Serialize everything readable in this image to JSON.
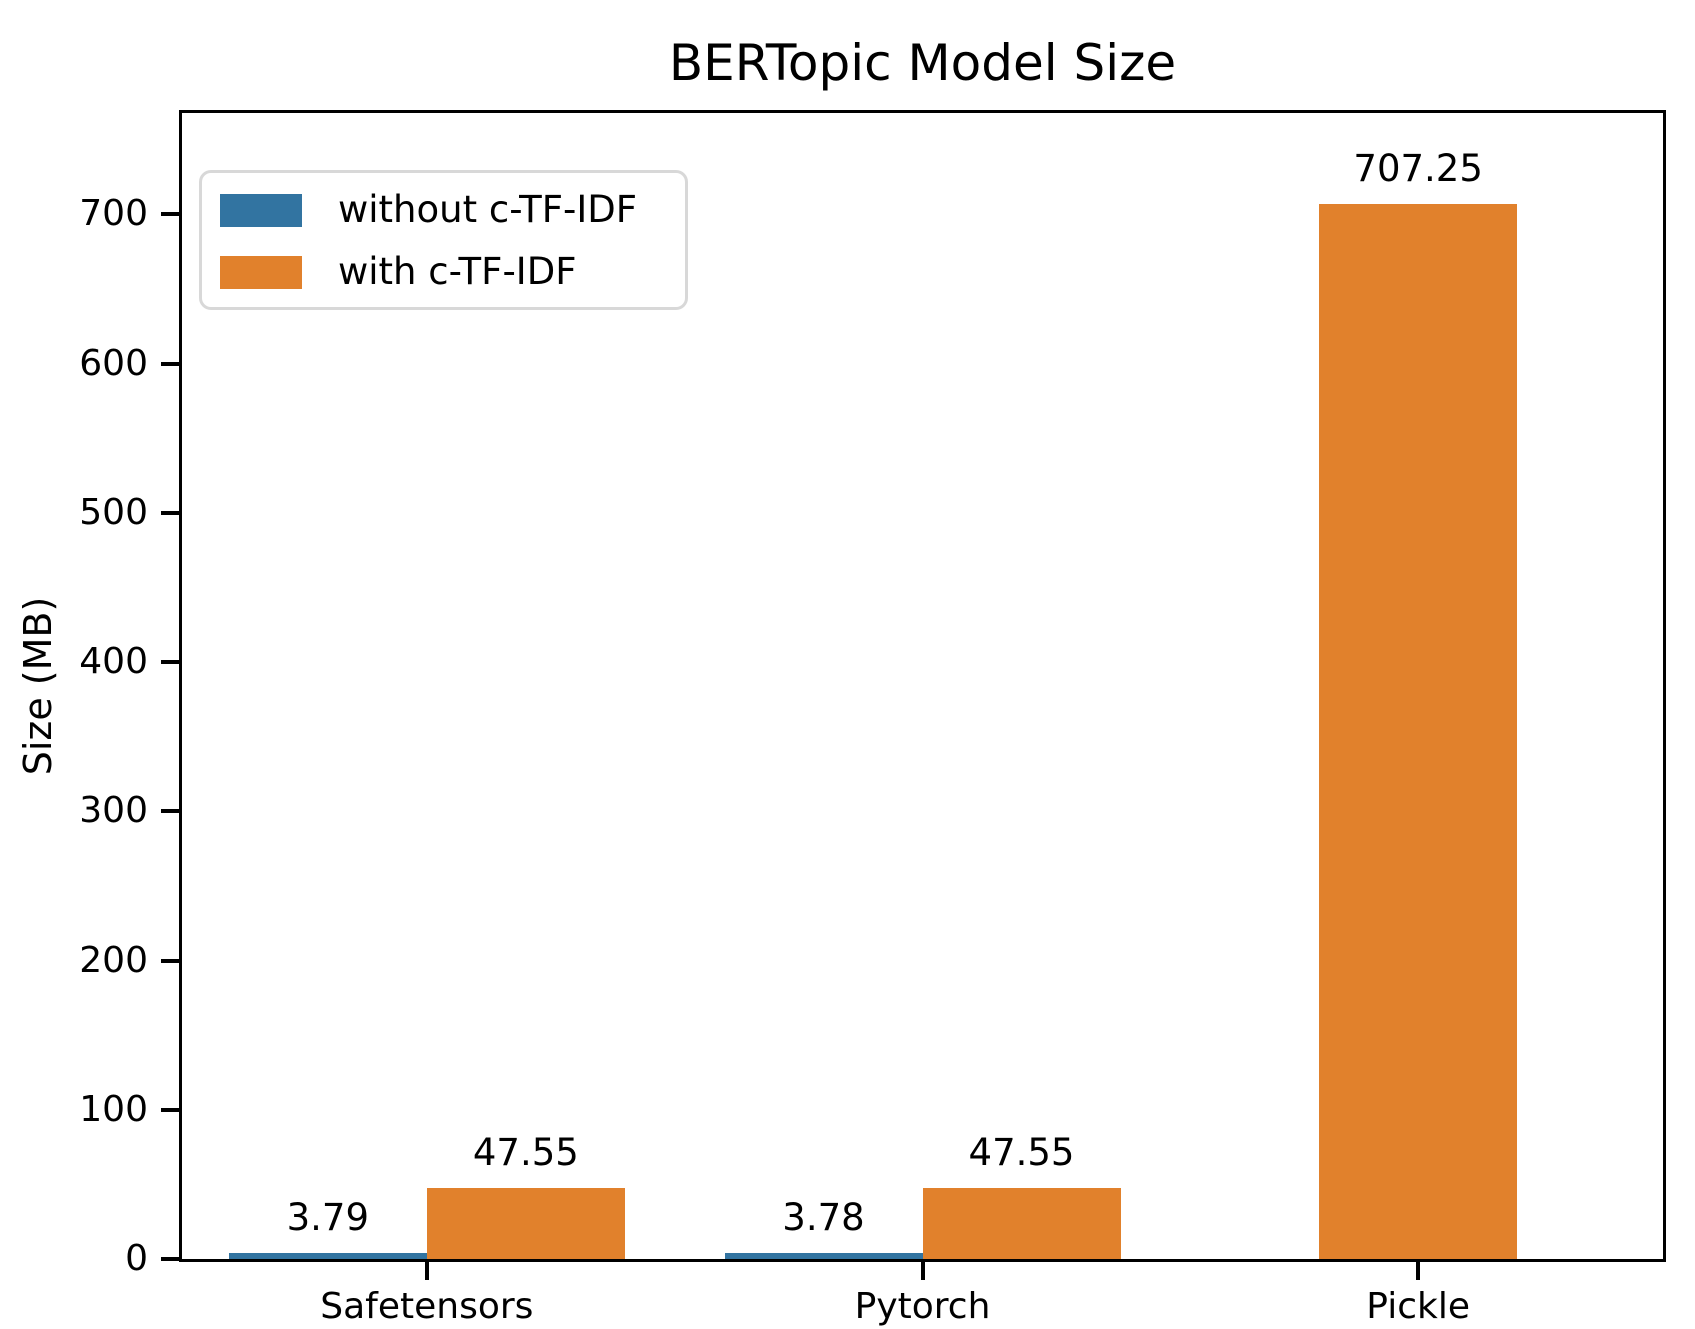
{
  "figure": {
    "title": "BERTopic Model Size",
    "ylabel": "Size (MB)"
  },
  "legend": {
    "items": [
      {
        "label": "without c-TF-IDF",
        "color": "#3274A1"
      },
      {
        "label": "with c-TF-IDF",
        "color": "#E1812C"
      }
    ]
  },
  "chart_data": {
    "type": "bar",
    "title": "BERTopic Model Size",
    "xlabel": "",
    "ylabel": "Size (MB)",
    "categories": [
      "Safetensors",
      "Pytorch",
      "Pickle"
    ],
    "series": [
      {
        "name": "without c-TF-IDF",
        "color": "#3274A1",
        "values": [
          3.79,
          3.78,
          null
        ],
        "labels": [
          "3.79",
          "3.78",
          null
        ]
      },
      {
        "name": "with c-TF-IDF",
        "color": "#E1812C",
        "values": [
          47.55,
          47.55,
          707.25
        ],
        "labels": [
          "47.55",
          "47.55",
          "707.25"
        ]
      }
    ],
    "ylim": [
      0,
      770
    ],
    "yticks": [
      0,
      100,
      200,
      300,
      400,
      500,
      600,
      700
    ],
    "grid": false,
    "value_labels": true,
    "legend_position": "upper left",
    "spine_color": "#000000",
    "text_color": "#000000"
  }
}
